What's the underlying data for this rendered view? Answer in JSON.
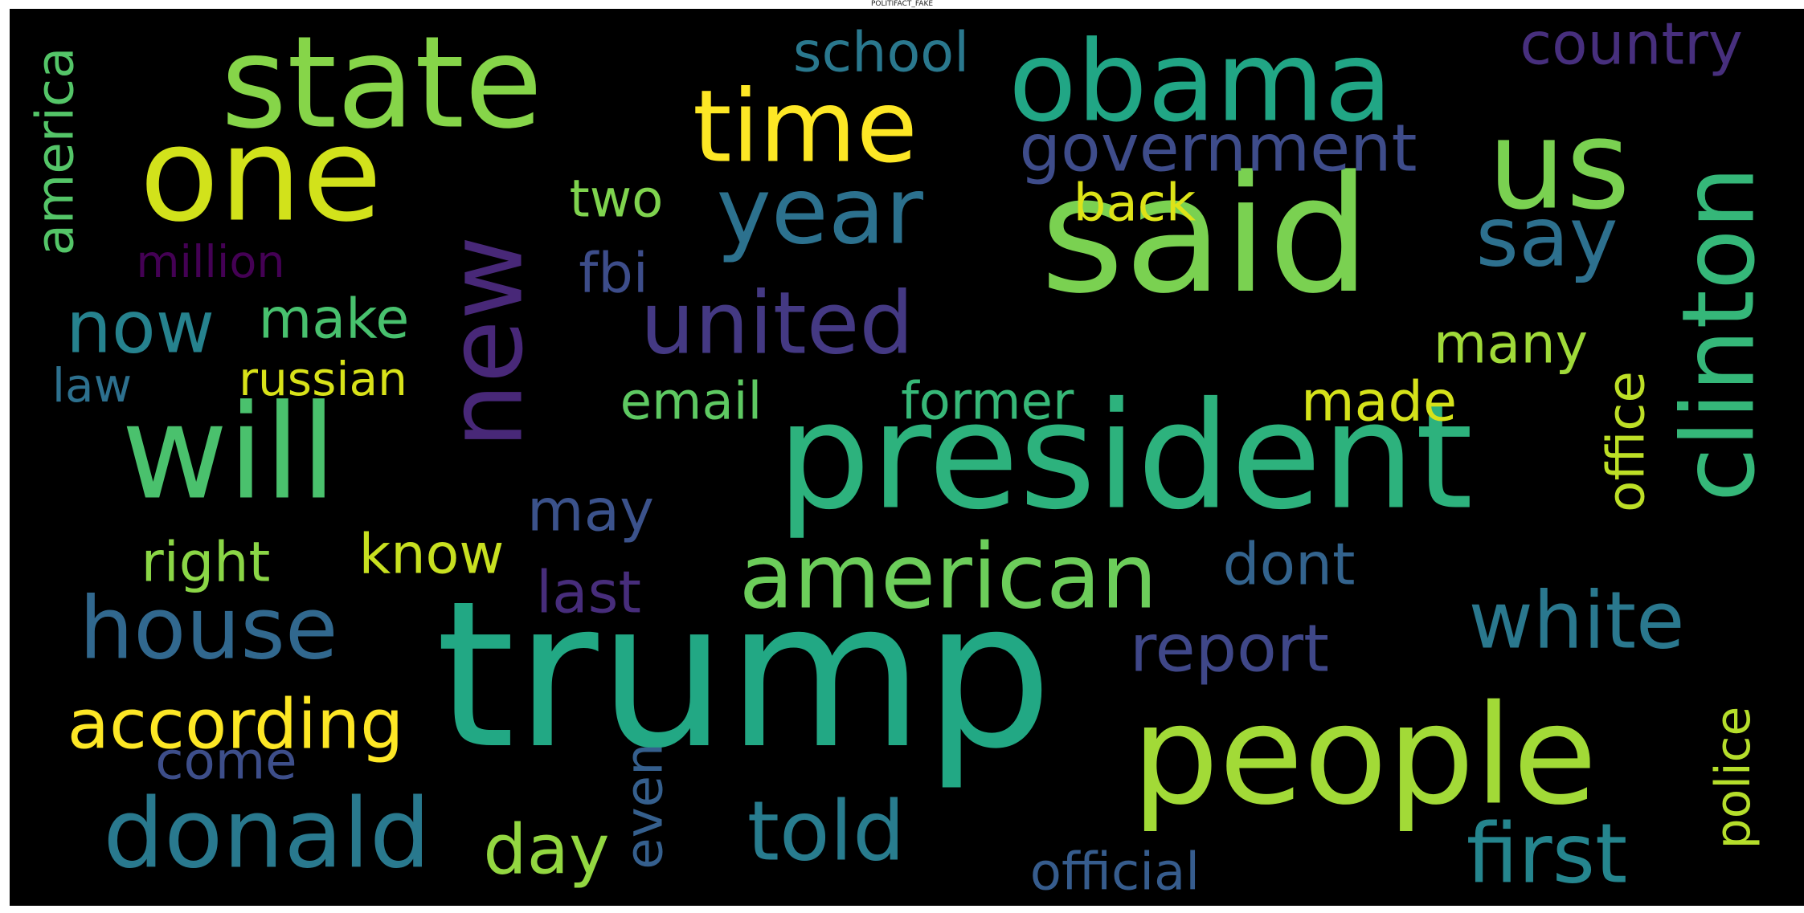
{
  "figure": {
    "title": "POLITIFACT_FAKE",
    "background": "#000000"
  },
  "words": [
    {
      "text": "said",
      "color": "#7ad151"
    },
    {
      "text": "trump",
      "color": "#22a884"
    },
    {
      "text": "president",
      "color": "#2db27d"
    },
    {
      "text": "new",
      "color": "#482878"
    },
    {
      "text": "state",
      "color": "#86d549"
    },
    {
      "text": "one",
      "color": "#d2e21b"
    },
    {
      "text": "will",
      "color": "#4ac16d"
    },
    {
      "text": "us",
      "color": "#7ad151"
    },
    {
      "text": "obama",
      "color": "#21a685"
    },
    {
      "text": "time",
      "color": "#fde725"
    },
    {
      "text": "year",
      "color": "#2c718e"
    },
    {
      "text": "people",
      "color": "#a2da37"
    },
    {
      "text": "clinton",
      "color": "#35b779"
    },
    {
      "text": "donald",
      "color": "#29798e"
    },
    {
      "text": "house",
      "color": "#31688e"
    },
    {
      "text": "american",
      "color": "#6ccd5a"
    },
    {
      "text": "united",
      "color": "#443983"
    },
    {
      "text": "white",
      "color": "#2a788e"
    },
    {
      "text": "say",
      "color": "#2d708e"
    },
    {
      "text": "told",
      "color": "#287c8e"
    },
    {
      "text": "first",
      "color": "#25858e"
    },
    {
      "text": "country",
      "color": "#472f7d"
    },
    {
      "text": "government",
      "color": "#3e4c8a"
    },
    {
      "text": "now",
      "color": "#26828e"
    },
    {
      "text": "according",
      "color": "#fde725"
    },
    {
      "text": "report",
      "color": "#3f4788"
    },
    {
      "text": "official",
      "color": "#365c8d"
    },
    {
      "text": "school",
      "color": "#2a788e"
    },
    {
      "text": "america",
      "color": "#54c568"
    },
    {
      "text": "day",
      "color": "#93d741"
    },
    {
      "text": "police",
      "color": "#b5de2b"
    },
    {
      "text": "office",
      "color": "#bddf26"
    },
    {
      "text": "email",
      "color": "#5ec962"
    },
    {
      "text": "former",
      "color": "#37b878"
    },
    {
      "text": "make",
      "color": "#48c16e"
    },
    {
      "text": "many",
      "color": "#a0da39"
    },
    {
      "text": "right",
      "color": "#8bd646"
    },
    {
      "text": "know",
      "color": "#c8e020"
    },
    {
      "text": "made",
      "color": "#d5e21a"
    },
    {
      "text": "two",
      "color": "#7fd34e"
    },
    {
      "text": "back",
      "color": "#dde318"
    },
    {
      "text": "fbi",
      "color": "#3d4d8a"
    },
    {
      "text": "million",
      "color": "#440154"
    },
    {
      "text": "russian",
      "color": "#d8e219"
    },
    {
      "text": "law",
      "color": "#2d708e"
    },
    {
      "text": "may",
      "color": "#3b528b"
    },
    {
      "text": "dont",
      "color": "#33638d"
    },
    {
      "text": "last",
      "color": "#472d7b"
    },
    {
      "text": "even",
      "color": "#355f8d"
    },
    {
      "text": "come",
      "color": "#3d4e8a"
    }
  ]
}
